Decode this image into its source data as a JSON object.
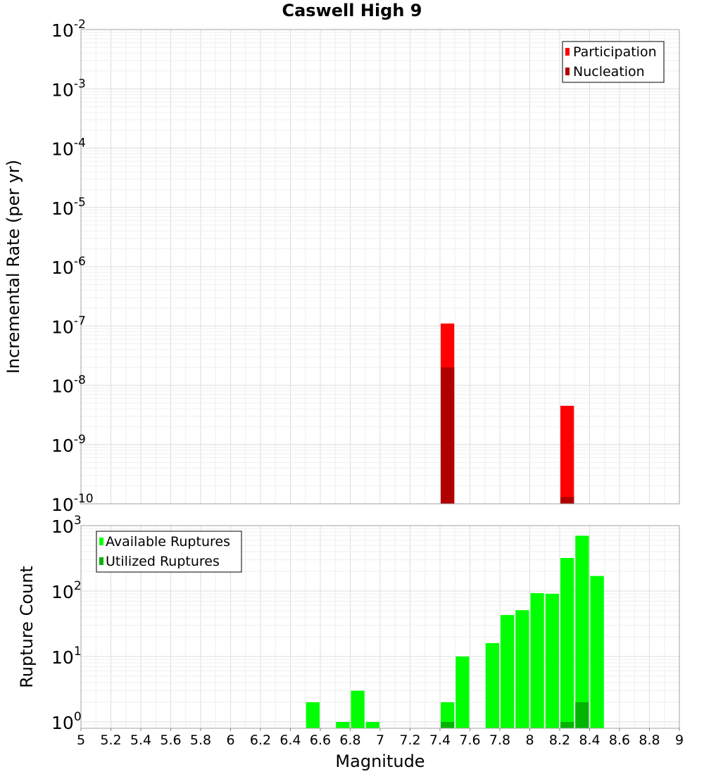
{
  "chart_data": [
    {
      "type": "bar",
      "scale": "log",
      "title": "Caswell High 9",
      "xlabel": "",
      "ylabel": "Incremental Rate (per yr)",
      "xlim": [
        5,
        9
      ],
      "ylim": [
        1e-10,
        0.01
      ],
      "y_ticks": [
        {
          "base": "10",
          "exp": "-10",
          "value": 1e-10
        },
        {
          "base": "10",
          "exp": "-9",
          "value": 1e-09
        },
        {
          "base": "10",
          "exp": "-8",
          "value": 1e-08
        },
        {
          "base": "10",
          "exp": "-7",
          "value": 1e-07
        },
        {
          "base": "10",
          "exp": "-6",
          "value": 1e-06
        },
        {
          "base": "10",
          "exp": "-5",
          "value": 1e-05
        },
        {
          "base": "10",
          "exp": "-4",
          "value": 0.0001
        },
        {
          "base": "10",
          "exp": "-3",
          "value": 0.001
        },
        {
          "base": "10",
          "exp": "-2",
          "value": 0.01
        }
      ],
      "bin_width": 0.1,
      "grid": true,
      "legend_position": "top-right",
      "series": [
        {
          "name": "Participation",
          "color": "#ff0000",
          "x": [
            7.45,
            8.25
          ],
          "values": [
            1.1e-07,
            4.5e-09
          ]
        },
        {
          "name": "Nucleation",
          "color": "#b00000",
          "x": [
            7.45,
            8.25
          ],
          "values": [
            2e-08,
            1.3e-10
          ]
        }
      ]
    },
    {
      "type": "bar",
      "scale": "log",
      "title": "",
      "xlabel": "Magnitude",
      "ylabel": "Rupture Count",
      "xlim": [
        5,
        9
      ],
      "ylim": [
        0.8,
        1000
      ],
      "x_ticks": [
        "5",
        "5.2",
        "5.4",
        "5.6",
        "5.8",
        "6",
        "6.2",
        "6.4",
        "6.6",
        "6.8",
        "7",
        "7.2",
        "7.4",
        "7.6",
        "7.8",
        "8",
        "8.2",
        "8.4",
        "8.6",
        "8.8",
        "9"
      ],
      "y_ticks": [
        {
          "base": "10",
          "exp": "0",
          "value": 1
        },
        {
          "base": "10",
          "exp": "1",
          "value": 10
        },
        {
          "base": "10",
          "exp": "2",
          "value": 100
        },
        {
          "base": "10",
          "exp": "3",
          "value": 1000
        }
      ],
      "bin_width": 0.1,
      "grid": true,
      "legend_position": "top-left",
      "series": [
        {
          "name": "Available Ruptures",
          "color": "#00ff00",
          "x": [
            6.55,
            6.75,
            6.85,
            6.95,
            7.45,
            7.55,
            7.75,
            7.85,
            7.95,
            8.05,
            8.15,
            8.25,
            8.35,
            8.45
          ],
          "values": [
            2,
            1,
            3,
            1,
            2,
            10,
            16,
            43,
            51,
            93,
            91,
            320,
            700,
            170
          ]
        },
        {
          "name": "Utilized Ruptures",
          "color": "#00b400",
          "x": [
            7.45,
            8.25,
            8.35
          ],
          "values": [
            1,
            1,
            2
          ]
        }
      ]
    }
  ]
}
